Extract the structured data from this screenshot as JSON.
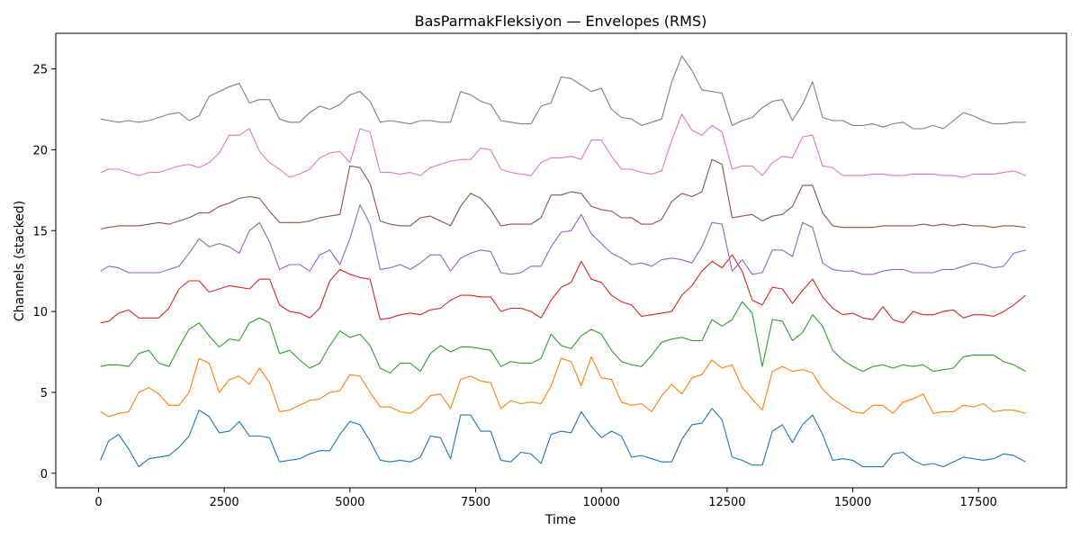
{
  "chart_data": {
    "type": "line",
    "title": "BasParmakFleksiyon — Envelopes (RMS)",
    "xlabel": "Time",
    "ylabel": "Channels (stacked)",
    "xlim": [
      -850,
      19250
    ],
    "ylim": [
      -0.9,
      27.2
    ],
    "xticks": [
      0,
      2500,
      5000,
      7500,
      10000,
      12500,
      15000,
      17500
    ],
    "yticks": [
      0,
      5,
      10,
      15,
      20,
      25
    ],
    "grid": false,
    "x": [
      40,
      200,
      400,
      600,
      800,
      1000,
      1200,
      1400,
      1600,
      1800,
      2000,
      2200,
      2400,
      2600,
      2800,
      3000,
      3200,
      3400,
      3600,
      3800,
      4000,
      4200,
      4400,
      4600,
      4800,
      5000,
      5200,
      5400,
      5600,
      5800,
      6000,
      6200,
      6400,
      6600,
      6800,
      7000,
      7200,
      7400,
      7600,
      7800,
      8000,
      8200,
      8400,
      8600,
      8800,
      9000,
      9200,
      9400,
      9600,
      9800,
      10000,
      10200,
      10400,
      10600,
      10800,
      11000,
      11200,
      11400,
      11600,
      11800,
      12000,
      12200,
      12400,
      12600,
      12800,
      13000,
      13200,
      13400,
      13600,
      13800,
      14000,
      14200,
      14400,
      14600,
      14800,
      15000,
      15200,
      15400,
      15600,
      15800,
      16000,
      16200,
      16400,
      16600,
      16800,
      17000,
      17200,
      17400,
      17600,
      17800,
      18000,
      18200,
      18440
    ],
    "series": [
      {
        "color": "#1f77b4",
        "values": [
          0.8,
          2.0,
          2.4,
          1.5,
          0.4,
          0.9,
          1.0,
          1.1,
          1.6,
          2.3,
          3.9,
          3.5,
          2.5,
          2.6,
          3.2,
          2.3,
          2.3,
          2.2,
          0.7,
          0.8,
          0.9,
          1.2,
          1.4,
          1.4,
          2.4,
          3.2,
          3.0,
          2.0,
          0.8,
          0.7,
          0.8,
          0.7,
          1.0,
          2.3,
          2.2,
          0.9,
          3.6,
          3.6,
          2.6,
          2.6,
          0.8,
          0.7,
          1.3,
          1.2,
          0.6,
          2.4,
          2.6,
          2.5,
          3.8,
          2.9,
          2.2,
          2.6,
          2.3,
          1.0,
          1.1,
          0.9,
          0.7,
          0.7,
          2.1,
          3.0,
          3.1,
          4.0,
          3.3,
          1.0,
          0.8,
          0.5,
          0.5,
          2.6,
          3.0,
          1.9,
          3.0,
          3.6,
          2.4,
          0.8,
          0.9,
          0.8,
          0.4,
          0.4,
          0.4,
          1.2,
          1.3,
          0.8,
          0.5,
          0.6,
          0.4,
          0.7,
          1.0,
          0.9,
          0.8,
          0.9,
          1.2,
          1.1,
          0.7
        ]
      },
      {
        "color": "#ff7f0e",
        "values": [
          3.8,
          3.5,
          3.7,
          3.8,
          5.0,
          5.3,
          4.9,
          4.2,
          4.2,
          5.0,
          7.1,
          6.8,
          5.0,
          5.8,
          6.0,
          5.5,
          6.5,
          5.6,
          3.8,
          3.9,
          4.2,
          4.5,
          4.6,
          5.0,
          5.1,
          6.1,
          6.0,
          5.0,
          4.1,
          4.1,
          3.8,
          3.7,
          4.1,
          4.8,
          4.9,
          4.0,
          5.8,
          6.0,
          5.7,
          5.6,
          4.0,
          4.5,
          4.3,
          4.4,
          4.3,
          5.4,
          7.1,
          6.9,
          5.4,
          7.2,
          5.9,
          5.8,
          4.4,
          4.2,
          4.3,
          3.8,
          4.8,
          5.5,
          4.9,
          5.9,
          6.1,
          7.0,
          6.5,
          6.7,
          5.3,
          4.6,
          3.9,
          6.3,
          6.6,
          6.3,
          6.4,
          6.2,
          5.2,
          4.6,
          4.2,
          3.8,
          3.7,
          4.2,
          4.2,
          3.7,
          4.4,
          4.6,
          4.9,
          3.7,
          3.8,
          3.8,
          4.2,
          4.1,
          4.3,
          3.8,
          3.9,
          3.9,
          3.7
        ]
      },
      {
        "color": "#2ca02c",
        "values": [
          6.6,
          6.7,
          6.7,
          6.6,
          7.4,
          7.6,
          6.8,
          6.6,
          7.8,
          8.9,
          9.3,
          8.5,
          7.8,
          8.3,
          8.2,
          9.3,
          9.6,
          9.3,
          7.4,
          7.6,
          7.0,
          6.5,
          6.8,
          7.9,
          8.8,
          8.4,
          8.6,
          7.9,
          6.5,
          6.2,
          6.8,
          6.8,
          6.3,
          7.4,
          7.9,
          7.5,
          7.8,
          7.8,
          7.7,
          7.6,
          6.6,
          6.9,
          6.8,
          6.8,
          7.1,
          8.6,
          7.9,
          7.7,
          8.5,
          8.9,
          8.6,
          7.6,
          6.9,
          6.7,
          6.6,
          7.3,
          8.1,
          8.3,
          8.4,
          8.2,
          8.2,
          9.5,
          9.1,
          9.5,
          10.6,
          9.9,
          6.6,
          9.5,
          9.4,
          8.2,
          8.7,
          9.8,
          9.1,
          7.6,
          7.0,
          6.6,
          6.3,
          6.6,
          6.7,
          6.5,
          6.7,
          6.6,
          6.7,
          6.3,
          6.4,
          6.5,
          7.2,
          7.3,
          7.3,
          7.3,
          6.9,
          6.7,
          6.3
        ]
      },
      {
        "color": "#d62728",
        "values": [
          9.3,
          9.4,
          9.9,
          10.1,
          9.6,
          9.6,
          9.6,
          10.2,
          11.4,
          11.9,
          11.9,
          11.2,
          11.4,
          11.6,
          11.5,
          11.4,
          12.0,
          12.0,
          10.4,
          10.0,
          9.9,
          9.6,
          10.2,
          11.9,
          12.6,
          12.3,
          12.1,
          12.0,
          9.5,
          9.6,
          9.8,
          9.9,
          9.8,
          10.1,
          10.2,
          10.7,
          11.0,
          11.0,
          10.9,
          10.9,
          10.0,
          10.2,
          10.2,
          10.0,
          9.6,
          10.7,
          11.5,
          11.8,
          13.1,
          12.0,
          11.8,
          11.0,
          10.6,
          10.4,
          9.7,
          9.8,
          9.9,
          10.0,
          11.0,
          11.6,
          12.5,
          13.1,
          12.7,
          13.5,
          12.5,
          10.7,
          10.4,
          11.5,
          11.4,
          10.5,
          11.3,
          12.0,
          10.9,
          10.2,
          9.8,
          9.9,
          9.6,
          9.5,
          10.3,
          9.5,
          9.3,
          10.0,
          9.8,
          9.8,
          10.0,
          10.1,
          9.6,
          9.8,
          9.8,
          9.7,
          10.0,
          10.4,
          11.0
        ]
      },
      {
        "color": "#9467bd",
        "values": [
          12.5,
          12.8,
          12.7,
          12.4,
          12.4,
          12.4,
          12.4,
          12.6,
          12.8,
          13.6,
          14.5,
          14.0,
          14.2,
          14.0,
          13.6,
          15.0,
          15.5,
          14.3,
          12.6,
          12.9,
          12.9,
          12.5,
          13.5,
          13.8,
          12.9,
          14.5,
          16.6,
          15.4,
          12.6,
          12.7,
          12.9,
          12.6,
          13.0,
          13.5,
          13.5,
          12.5,
          13.3,
          13.6,
          13.8,
          13.7,
          12.4,
          12.3,
          12.4,
          12.8,
          12.8,
          14.0,
          14.9,
          15.0,
          16.0,
          14.8,
          14.2,
          13.6,
          13.3,
          12.9,
          13.0,
          12.8,
          13.2,
          13.3,
          13.2,
          13.0,
          14.0,
          15.5,
          15.4,
          12.5,
          13.2,
          12.3,
          12.4,
          13.8,
          13.8,
          13.4,
          15.5,
          15.2,
          13.0,
          12.6,
          12.5,
          12.5,
          12.3,
          12.3,
          12.5,
          12.6,
          12.6,
          12.4,
          12.4,
          12.4,
          12.6,
          12.6,
          12.8,
          13.0,
          12.9,
          12.7,
          12.8,
          13.6,
          13.8
        ]
      },
      {
        "color": "#8c564b",
        "values": [
          15.1,
          15.2,
          15.3,
          15.3,
          15.3,
          15.4,
          15.5,
          15.4,
          15.6,
          15.8,
          16.1,
          16.1,
          16.5,
          16.7,
          17.0,
          17.1,
          17.0,
          16.2,
          15.5,
          15.5,
          15.5,
          15.6,
          15.8,
          15.9,
          16.0,
          19.0,
          18.9,
          17.9,
          15.6,
          15.4,
          15.3,
          15.3,
          15.8,
          15.9,
          15.6,
          15.3,
          16.5,
          17.3,
          17.0,
          16.3,
          15.3,
          15.4,
          15.4,
          15.4,
          15.8,
          17.2,
          17.2,
          17.4,
          17.3,
          16.5,
          16.3,
          16.2,
          15.8,
          15.8,
          15.4,
          15.4,
          15.7,
          16.8,
          17.3,
          17.1,
          17.4,
          19.4,
          19.1,
          15.8,
          15.9,
          16.0,
          15.6,
          15.9,
          16.0,
          16.5,
          17.8,
          17.8,
          16.1,
          15.3,
          15.2,
          15.2,
          15.2,
          15.2,
          15.3,
          15.3,
          15.3,
          15.3,
          15.4,
          15.3,
          15.4,
          15.3,
          15.4,
          15.3,
          15.3,
          15.2,
          15.3,
          15.3,
          15.2
        ]
      },
      {
        "color": "#e377c2",
        "values": [
          18.6,
          18.8,
          18.8,
          18.6,
          18.4,
          18.6,
          18.6,
          18.8,
          19.0,
          19.1,
          18.9,
          19.2,
          19.8,
          20.9,
          20.9,
          21.3,
          19.9,
          19.2,
          18.8,
          18.3,
          18.5,
          18.8,
          19.5,
          19.8,
          19.9,
          19.2,
          21.3,
          21.1,
          18.6,
          18.6,
          18.5,
          18.6,
          18.4,
          18.9,
          19.1,
          19.3,
          19.4,
          19.4,
          20.1,
          20.0,
          18.8,
          18.6,
          18.5,
          18.4,
          19.2,
          19.5,
          19.5,
          19.6,
          19.4,
          20.6,
          20.6,
          19.6,
          18.8,
          18.8,
          18.6,
          18.5,
          18.7,
          20.6,
          22.2,
          21.2,
          20.9,
          21.5,
          21.1,
          18.8,
          19.0,
          19.0,
          18.4,
          19.2,
          19.6,
          19.5,
          20.8,
          20.9,
          19.0,
          18.9,
          18.4,
          18.4,
          18.4,
          18.5,
          18.5,
          18.4,
          18.4,
          18.5,
          18.5,
          18.5,
          18.4,
          18.4,
          18.3,
          18.5,
          18.5,
          18.5,
          18.6,
          18.7,
          18.4
        ]
      },
      {
        "color": "#7f7f7f",
        "values": [
          21.9,
          21.8,
          21.7,
          21.8,
          21.7,
          21.8,
          22.0,
          22.2,
          22.3,
          21.8,
          22.1,
          23.3,
          23.6,
          23.9,
          24.1,
          22.9,
          23.1,
          23.1,
          21.9,
          21.7,
          21.7,
          22.3,
          22.7,
          22.5,
          22.8,
          23.4,
          23.6,
          23.0,
          21.7,
          21.8,
          21.7,
          21.6,
          21.8,
          21.8,
          21.7,
          21.7,
          23.6,
          23.4,
          23.0,
          22.8,
          21.8,
          21.7,
          21.6,
          21.6,
          22.7,
          22.9,
          24.5,
          24.4,
          24.0,
          23.6,
          23.8,
          22.5,
          22.0,
          21.9,
          21.5,
          21.7,
          21.9,
          24.2,
          25.8,
          24.9,
          23.7,
          23.6,
          23.5,
          21.5,
          21.8,
          22.0,
          22.6,
          23.0,
          23.1,
          21.8,
          22.8,
          24.2,
          22.0,
          21.8,
          21.8,
          21.5,
          21.5,
          21.6,
          21.4,
          21.6,
          21.7,
          21.3,
          21.3,
          21.5,
          21.3,
          21.8,
          22.3,
          22.1,
          21.8,
          21.6,
          21.6,
          21.7,
          21.7
        ]
      }
    ]
  }
}
